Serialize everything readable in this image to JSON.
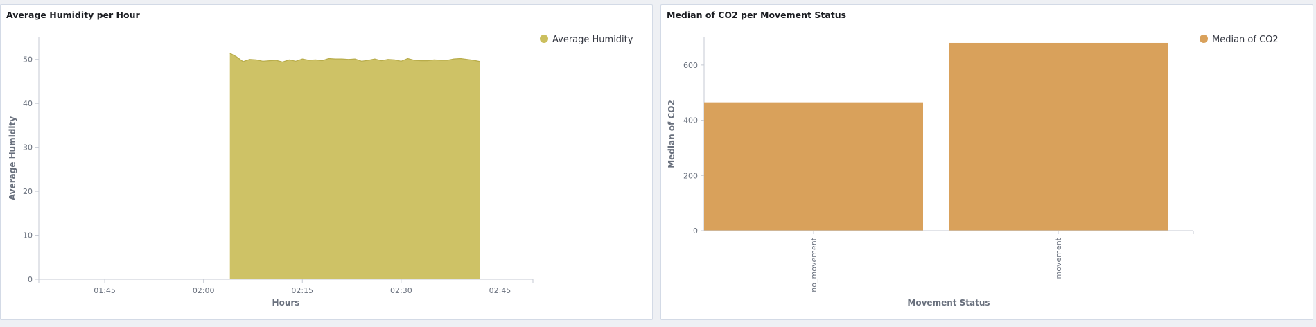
{
  "panels": {
    "humidity": {
      "title": "Average Humidity per Hour"
    },
    "co2": {
      "title": "Median of CO2 per Movement Status"
    }
  },
  "chart_data": [
    {
      "type": "area",
      "title": "Average Humidity per Hour",
      "xlabel": "Hours",
      "ylabel": "Average Humidity",
      "x_domain": [
        "01:35",
        "02:50"
      ],
      "ylim": [
        0,
        55
      ],
      "x_ticks": [
        "01:45",
        "02:00",
        "02:15",
        "02:30",
        "02:45"
      ],
      "y_ticks": [
        0,
        10,
        20,
        30,
        40,
        50
      ],
      "legend_position": "top-right",
      "grid": false,
      "series": [
        {
          "name": "Average Humidity",
          "color": "#cbbf5e",
          "x": [
            "02:04",
            "02:05",
            "02:06",
            "02:07",
            "02:08",
            "02:09",
            "02:10",
            "02:11",
            "02:12",
            "02:13",
            "02:14",
            "02:15",
            "02:16",
            "02:17",
            "02:18",
            "02:19",
            "02:20",
            "02:21",
            "02:22",
            "02:23",
            "02:24",
            "02:25",
            "02:26",
            "02:27",
            "02:28",
            "02:29",
            "02:30",
            "02:31",
            "02:32",
            "02:33",
            "02:34",
            "02:35",
            "02:36",
            "02:37",
            "02:38",
            "02:39",
            "02:40",
            "02:41",
            "02:42"
          ],
          "values": [
            51.4,
            50.6,
            49.5,
            50.0,
            49.9,
            49.6,
            49.7,
            49.8,
            49.4,
            49.9,
            49.6,
            50.1,
            49.8,
            49.9,
            49.7,
            50.2,
            50.1,
            50.1,
            50.0,
            50.1,
            49.6,
            49.8,
            50.1,
            49.7,
            50.0,
            49.9,
            49.6,
            50.2,
            49.8,
            49.7,
            49.7,
            49.9,
            49.8,
            49.8,
            50.1,
            50.2,
            50.0,
            49.8,
            49.5
          ]
        }
      ]
    },
    {
      "type": "bar",
      "title": "Median of CO2 per Movement Status",
      "xlabel": "Movement Status",
      "ylabel": "Median of CO2",
      "categories": [
        "no_movement",
        "movement"
      ],
      "ylim": [
        0,
        700
      ],
      "y_ticks": [
        0,
        200,
        400,
        600
      ],
      "legend_position": "top-right",
      "grid": false,
      "series": [
        {
          "name": "Median of CO2",
          "color": "#d9a15b",
          "values": [
            465,
            680
          ]
        }
      ]
    }
  ]
}
